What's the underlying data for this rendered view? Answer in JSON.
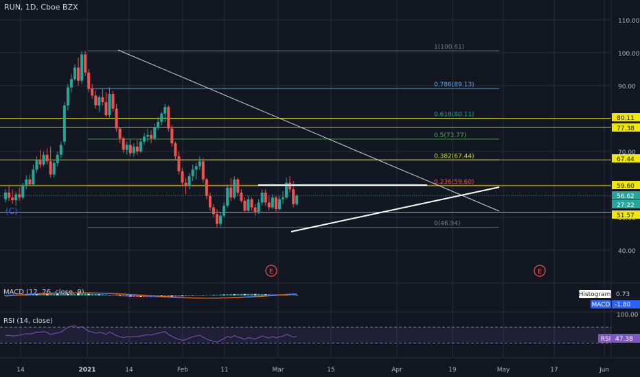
{
  "header": {
    "symbol": "RUN, 1D, Cboe BZX",
    "indicator_marker": "(C)"
  },
  "colors": {
    "background": "#131722",
    "grid": "#2a2e39",
    "up": "#26a69a",
    "down": "#ef5350",
    "fib_yellow": "#f0e800",
    "macd_line": "#2962ff",
    "signal_line": "#ff6d00",
    "rsi_line": "#7e57c2",
    "earnings": "#ef5350"
  },
  "chart_data": {
    "type": "candlestick",
    "title": "RUN, 1D, Cboe BZX",
    "price_axis": {
      "ticks": [
        "110.00",
        "100.00",
        "90.00",
        "80.00",
        "70.00",
        "60.00",
        "50.00",
        "40.00"
      ],
      "range": [
        36,
        115
      ]
    },
    "time_axis": {
      "ticks": [
        "14",
        "2021",
        "14",
        "Feb",
        "11",
        "Mar",
        "15",
        "Apr",
        "19",
        "May",
        "17",
        "Jun"
      ]
    },
    "fib_levels": [
      {
        "label": "1(100.61)",
        "value": 100.61,
        "color": "#787b86"
      },
      {
        "label": "0.786(89.13)",
        "value": 89.13,
        "color": "#64b5f6"
      },
      {
        "label": "0.618(80.11)",
        "value": 80.11,
        "color": "#26a69a"
      },
      {
        "label": "0.5(73.77)",
        "value": 73.77,
        "color": "#4caf50"
      },
      {
        "label": "0.382(67.44)",
        "value": 67.44,
        "color": "#cddc39"
      },
      {
        "label": "0.236(59.60)",
        "value": 59.6,
        "color": "#ef5350"
      },
      {
        "label": "0(46.94)",
        "value": 46.94,
        "color": "#787b86"
      }
    ],
    "horizontal_levels": [
      80.11,
      77.38,
      67.44,
      59.6,
      51.57
    ],
    "price_labels": [
      {
        "text": "80.11",
        "kind": "yellow"
      },
      {
        "text": "77.38",
        "kind": "yellow"
      },
      {
        "text": "67.44",
        "kind": "yellow"
      },
      {
        "text": "59.60",
        "kind": "yellow"
      },
      {
        "text": "56.62",
        "kind": "last"
      },
      {
        "text": "27:22",
        "kind": "countdown"
      },
      {
        "text": "51.57",
        "kind": "yellow"
      }
    ],
    "last_price": 56.62,
    "candles": [
      [
        55.5,
        58.5,
        54.5,
        57.5
      ],
      [
        57.5,
        59.5,
        55.0,
        56.0
      ],
      [
        56.0,
        58.5,
        54.0,
        55.2
      ],
      [
        55.2,
        57.8,
        53.5,
        57.0
      ],
      [
        57.0,
        59.0,
        55.0,
        56.0
      ],
      [
        56.0,
        60.5,
        55.5,
        59.8
      ],
      [
        59.8,
        62.8,
        58.5,
        61.5
      ],
      [
        61.5,
        63.0,
        59.5,
        60.0
      ],
      [
        60.0,
        66.0,
        59.5,
        64.5
      ],
      [
        64.5,
        68.5,
        63.5,
        67.5
      ],
      [
        67.5,
        70.5,
        65.0,
        66.0
      ],
      [
        66.0,
        70.0,
        65.5,
        69.0
      ],
      [
        69.0,
        71.0,
        66.0,
        67.0
      ],
      [
        67.0,
        71.5,
        62.0,
        63.0
      ],
      [
        63.0,
        67.5,
        62.0,
        66.5
      ],
      [
        66.5,
        70.0,
        65.5,
        69.0
      ],
      [
        69.0,
        73.0,
        68.0,
        72.0
      ],
      [
        73.0,
        85.0,
        72.0,
        84.0
      ],
      [
        84.0,
        90.5,
        82.5,
        89.5
      ],
      [
        89.5,
        93.5,
        88.0,
        92.0
      ],
      [
        92.0,
        96.5,
        91.5,
        95.5
      ],
      [
        95.5,
        98.5,
        90.0,
        91.5
      ],
      [
        91.5,
        100.6,
        90.5,
        99.5
      ],
      [
        99.5,
        100.6,
        93.0,
        94.0
      ],
      [
        94.0,
        95.0,
        88.0,
        89.0
      ],
      [
        89.0,
        90.5,
        86.0,
        87.0
      ],
      [
        87.0,
        88.5,
        83.0,
        84.0
      ],
      [
        84.0,
        87.0,
        82.0,
        86.5
      ],
      [
        86.5,
        89.0,
        84.0,
        85.0
      ],
      [
        85.0,
        88.0,
        80.5,
        81.0
      ],
      [
        81.0,
        89.5,
        80.0,
        87.5
      ],
      [
        87.5,
        88.5,
        82.0,
        83.0
      ],
      [
        83.0,
        84.5,
        76.0,
        77.0
      ],
      [
        77.0,
        77.5,
        72.5,
        74.0
      ],
      [
        74.0,
        74.5,
        69.5,
        70.5
      ],
      [
        70.5,
        73.0,
        69.0,
        72.0
      ],
      [
        72.0,
        73.5,
        68.5,
        69.5
      ],
      [
        69.5,
        72.5,
        68.5,
        71.5
      ],
      [
        71.5,
        73.5,
        69.0,
        70.0
      ],
      [
        70.0,
        74.0,
        69.5,
        73.0
      ],
      [
        73.0,
        75.5,
        72.0,
        74.5
      ],
      [
        74.5,
        77.0,
        73.0,
        75.0
      ],
      [
        75.0,
        76.5,
        72.5,
        74.0
      ],
      [
        74.0,
        78.5,
        73.5,
        77.5
      ],
      [
        77.5,
        80.5,
        76.5,
        79.0
      ],
      [
        79.0,
        82.0,
        78.0,
        81.5
      ],
      [
        81.5,
        84.5,
        79.0,
        83.5
      ],
      [
        83.5,
        84.0,
        76.0,
        77.0
      ],
      [
        77.0,
        78.0,
        71.5,
        72.5
      ],
      [
        72.5,
        73.0,
        67.5,
        68.5
      ],
      [
        68.5,
        70.0,
        63.0,
        64.0
      ],
      [
        64.0,
        65.0,
        59.5,
        60.5
      ],
      [
        60.5,
        62.0,
        57.0,
        59.5
      ],
      [
        59.5,
        63.5,
        58.5,
        62.5
      ],
      [
        62.5,
        66.0,
        61.0,
        64.5
      ],
      [
        64.5,
        66.5,
        61.5,
        65.5
      ],
      [
        65.5,
        68.5,
        64.5,
        67.0
      ],
      [
        67.0,
        68.0,
        60.5,
        61.5
      ],
      [
        61.5,
        62.0,
        55.5,
        56.5
      ],
      [
        56.5,
        57.5,
        52.0,
        53.0
      ],
      [
        53.0,
        54.0,
        50.0,
        51.0
      ],
      [
        51.0,
        52.5,
        46.9,
        48.0
      ],
      [
        48.0,
        51.5,
        47.0,
        50.5
      ],
      [
        50.5,
        54.5,
        50.0,
        53.5
      ],
      [
        53.5,
        60.0,
        53.0,
        59.0
      ],
      [
        59.0,
        62.0,
        55.0,
        56.0
      ],
      [
        56.0,
        62.5,
        55.5,
        61.5
      ],
      [
        61.5,
        62.0,
        56.5,
        57.5
      ],
      [
        57.5,
        58.5,
        54.5,
        55.0
      ],
      [
        55.0,
        56.0,
        51.5,
        52.0
      ],
      [
        52.0,
        56.5,
        51.5,
        55.5
      ],
      [
        55.5,
        56.0,
        52.0,
        53.0
      ],
      [
        53.0,
        54.0,
        50.5,
        51.5
      ],
      [
        51.5,
        55.5,
        51.0,
        54.5
      ],
      [
        54.5,
        58.5,
        53.5,
        57.5
      ],
      [
        57.5,
        58.5,
        53.5,
        54.5
      ],
      [
        54.5,
        56.5,
        52.0,
        53.0
      ],
      [
        53.0,
        57.0,
        52.5,
        56.0
      ],
      [
        56.0,
        56.5,
        51.5,
        52.5
      ],
      [
        52.5,
        56.5,
        52.0,
        55.5
      ],
      [
        55.5,
        58.0,
        54.0,
        56.0
      ],
      [
        56.0,
        62.0,
        55.5,
        60.5
      ],
      [
        60.5,
        62.5,
        57.5,
        58.5
      ],
      [
        58.5,
        61.0,
        53.0,
        54.0
      ],
      [
        54.0,
        57.0,
        53.5,
        56.62
      ]
    ],
    "trendlines": [
      {
        "from": [
          22,
          100.6
        ],
        "to": [
          98,
          52.0
        ],
        "color": "#d1d4dc"
      },
      {
        "from": [
          58,
          47.0
        ],
        "to": [
          98,
          59.0
        ],
        "color": "#ffffff"
      },
      {
        "from": [
          52,
          59.8
        ],
        "to": [
          83,
          59.8
        ],
        "color": "#ffffff"
      }
    ],
    "earnings_markers": [
      {
        "label": "E",
        "bar": 53
      },
      {
        "label": "E",
        "bar": 108
      }
    ],
    "macd": {
      "title": "MACD (12, 26, close, 9)",
      "legend": [
        {
          "name": "Histogram",
          "value": "0.73"
        },
        {
          "name": "MACD",
          "value": "-1.80"
        }
      ]
    },
    "rsi": {
      "title": "RSI (14, close)",
      "axis_ticks": [
        "100.00"
      ],
      "range": [
        0,
        100
      ],
      "bands": [
        70,
        30
      ],
      "value_label": {
        "name": "RSI",
        "value": "47.38"
      },
      "values": [
        49,
        50,
        48,
        49,
        50,
        52,
        54,
        53,
        55,
        58,
        57,
        59,
        57,
        52,
        54,
        56,
        58,
        64,
        70,
        72,
        74,
        68,
        72,
        66,
        60,
        58,
        55,
        57,
        56,
        52,
        58,
        54,
        49,
        46,
        44,
        46,
        45,
        47,
        46,
        48,
        50,
        51,
        50,
        53,
        55,
        57,
        59,
        52,
        47,
        43,
        40,
        37,
        39,
        43,
        46,
        48,
        50,
        45,
        40,
        37,
        35,
        33,
        37,
        41,
        47,
        44,
        49,
        45,
        43,
        40,
        44,
        42,
        40,
        44,
        48,
        45,
        43,
        47,
        43,
        46,
        47,
        52,
        49,
        45,
        47
      ]
    }
  }
}
